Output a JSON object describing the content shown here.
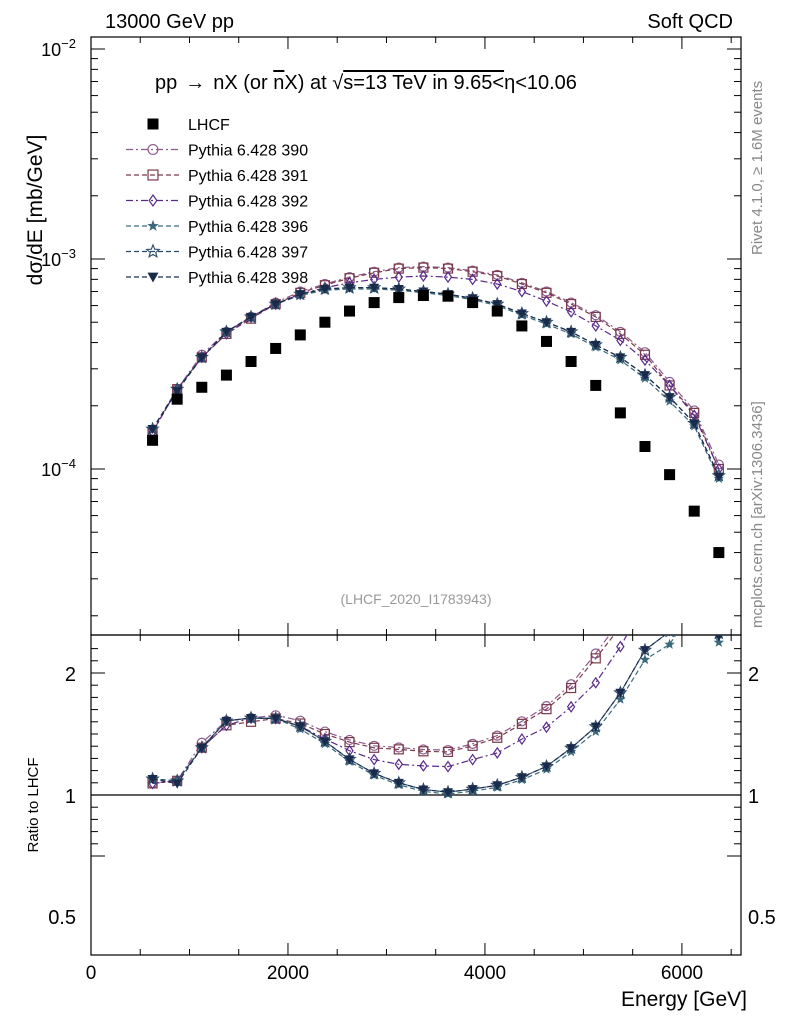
{
  "header": {
    "left": "13000 GeV pp",
    "right": "Soft QCD"
  },
  "side_labels": {
    "rivet": "Rivet 4.1.0, ≥ 1.6M events",
    "mcplots": "mcplots.cern.ch [arXiv:1306.3436]"
  },
  "colors": {
    "lhcf": "#000000",
    "p390": "#8c5a8c",
    "p391": "#7a3a4a",
    "p392": "#5a2a8a",
    "p396": "#3a6a7a",
    "p397": "#2a4a6a",
    "p398": "#1a2a4a"
  },
  "chart_data": {
    "type": "scatter",
    "title": "pp → nX (or n̅X) at √s=13 TeV in 9.65<η<10.06",
    "title_parts": {
      "prefix": "pp",
      "arrow": "→",
      "mid": "nX (or ",
      "nbar": "n",
      "nbar_suffix": "X) at ",
      "sqrt": "√",
      "s_part": "s=13 TeV in 9.65<",
      "eta": "η",
      "suffix": "<10.06"
    },
    "analysis_id": "(LHCF_2020_I1783943)",
    "xlabel": "Energy [GeV]",
    "ylabel": "dσ/dE [mb/GeV]",
    "ratio_ylabel": "Ratio to LHCF",
    "xlim": [
      0,
      6600
    ],
    "ylim_log": [
      1.5e-05,
      0.012
    ],
    "ratio_ylim": [
      0.4,
      2.3
    ],
    "x_ticks": [
      "0",
      "2000",
      "4000",
      "6000"
    ],
    "x_tick_values": [
      0,
      2000,
      4000,
      6000
    ],
    "y_tick_labels": [
      {
        "base": "10",
        "exp": "−2",
        "value": 0.01
      },
      {
        "base": "10",
        "exp": "−3",
        "value": 0.001
      },
      {
        "base": "10",
        "exp": "−4",
        "value": 0.0001
      }
    ],
    "ratio_ticks": [
      {
        "label": "2",
        "value": 2
      },
      {
        "label": "1",
        "value": 1
      },
      {
        "label": "0.5",
        "value": 0.5
      }
    ],
    "x": [
      625,
      875,
      1125,
      1375,
      1625,
      1875,
      2125,
      2375,
      2625,
      2875,
      3125,
      3375,
      3625,
      3875,
      4125,
      4375,
      4625,
      4875,
      5125,
      5375,
      5625,
      5875,
      6125,
      6375
    ],
    "lhcf": [
      0.000137,
      0.000215,
      0.000245,
      0.00028,
      0.000325,
      0.000375,
      0.000435,
      0.0005,
      0.000565,
      0.00062,
      0.000655,
      0.00067,
      0.000665,
      0.00062,
      0.000565,
      0.00048,
      0.000405,
      0.000325,
      0.00025,
      0.000185,
      0.000128,
      9.4e-05,
      6.3e-05,
      4e-05
    ],
    "series": [
      {
        "name": "Pythia 6.428 390",
        "marker": "circle-open",
        "dash": "dashdot",
        "color_key": "p390",
        "values": [
          0.00015,
          0.00024,
          0.00035,
          0.00045,
          0.00053,
          0.00062,
          0.0007,
          0.00076,
          0.00082,
          0.00087,
          0.00091,
          0.00092,
          0.00091,
          0.00088,
          0.00084,
          0.00077,
          0.0007,
          0.00062,
          0.00054,
          0.00045,
          0.00036,
          0.00026,
          0.00019,
          0.000105
        ]
      },
      {
        "name": "Pythia 6.428 391",
        "marker": "square-open",
        "dash": "dashed",
        "color_key": "p391",
        "values": [
          0.00015,
          0.00024,
          0.00034,
          0.00044,
          0.00052,
          0.00061,
          0.00069,
          0.00075,
          0.00081,
          0.00086,
          0.0009,
          0.00091,
          0.0009,
          0.00087,
          0.00083,
          0.00076,
          0.00069,
          0.00061,
          0.00053,
          0.00044,
          0.00035,
          0.00025,
          0.000185,
          0.0001
        ]
      },
      {
        "name": "Pythia 6.428 392",
        "marker": "diamond-open",
        "dash": "dashdot",
        "color_key": "p392",
        "values": [
          0.00015,
          0.00024,
          0.00034,
          0.00044,
          0.00053,
          0.00061,
          0.00068,
          0.00073,
          0.00077,
          0.0008,
          0.00082,
          0.00083,
          0.00082,
          0.0008,
          0.00076,
          0.0007,
          0.00063,
          0.00056,
          0.00048,
          0.00041,
          0.00033,
          0.00025,
          0.00018,
          0.0001
        ]
      },
      {
        "name": "Pythia 6.428 396",
        "marker": "star-filled",
        "dash": "dashed",
        "color_key": "p396",
        "values": [
          0.000155,
          0.00024,
          0.00034,
          0.00045,
          0.00053,
          0.00061,
          0.00067,
          0.00071,
          0.00072,
          0.00072,
          0.00071,
          0.00069,
          0.00067,
          0.00064,
          0.0006,
          0.00054,
          0.00049,
          0.00044,
          0.00038,
          0.00033,
          0.00027,
          0.00021,
          0.00016,
          9e-05
        ]
      },
      {
        "name": "Pythia 6.428 397",
        "marker": "star-open",
        "dash": "dashed",
        "color_key": "p397",
        "values": [
          0.000155,
          0.00024,
          0.00034,
          0.00045,
          0.00053,
          0.00061,
          0.00068,
          0.00072,
          0.00073,
          0.00073,
          0.00072,
          0.0007,
          0.00068,
          0.00065,
          0.00061,
          0.00055,
          0.0005,
          0.00045,
          0.00039,
          0.00034,
          0.00028,
          0.00022,
          0.000165,
          9.3e-05
        ]
      },
      {
        "name": "Pythia 6.428 398",
        "marker": "triangle-down-filled",
        "dash": "dashed",
        "color_key": "p398",
        "values": [
          0.000155,
          0.000235,
          0.00034,
          0.00045,
          0.00053,
          0.00061,
          0.00068,
          0.00072,
          0.00073,
          0.00073,
          0.00072,
          0.0007,
          0.00068,
          0.00065,
          0.00061,
          0.00055,
          0.0005,
          0.00045,
          0.00039,
          0.00034,
          0.00028,
          0.00022,
          0.000165,
          9.2e-05
        ]
      }
    ]
  }
}
